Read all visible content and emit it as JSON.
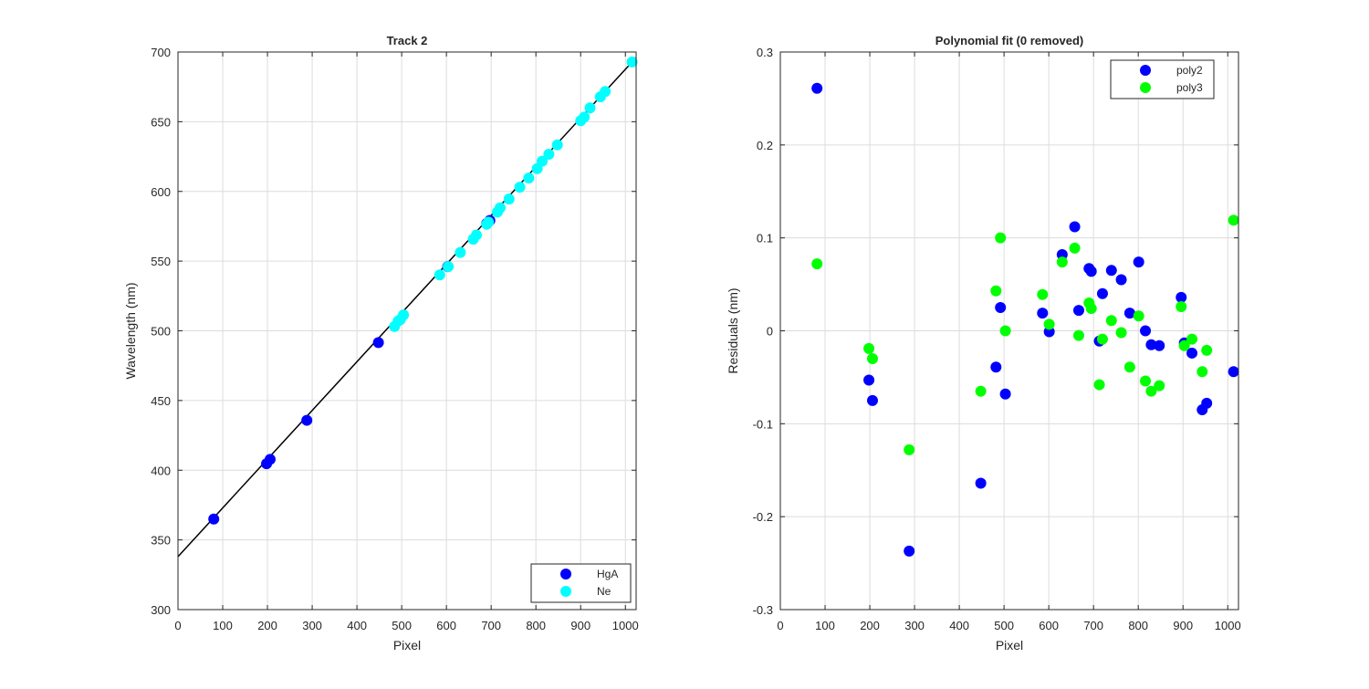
{
  "chart_data": [
    {
      "type": "scatter",
      "title": "Track 2",
      "xlabel": "Pixel",
      "ylabel": "Wavelength (nm)",
      "xlim": [
        0,
        1024
      ],
      "ylim": [
        300,
        700
      ],
      "xticks": [
        0,
        100,
        200,
        300,
        400,
        500,
        600,
        700,
        800,
        900,
        1000
      ],
      "yticks": [
        300,
        350,
        400,
        450,
        500,
        550,
        600,
        650,
        700
      ],
      "grid": true,
      "legend": "bottom-right",
      "fit_line": {
        "x": [
          0,
          1024
        ],
        "y": [
          338.0,
          696.0
        ],
        "color": "#000000"
      },
      "series": [
        {
          "name": "HgA",
          "color": "#0000ff",
          "x": [
            80,
            198,
            206,
            288,
            448,
            603,
            690,
            697
          ],
          "y": [
            365.0,
            404.7,
            407.8,
            435.8,
            491.6,
            546.1,
            577.0,
            579.1
          ]
        },
        {
          "name": "Ne",
          "color": "#00ffff",
          "x": [
            484,
            492,
            497,
            504,
            585,
            604,
            631,
            660,
            667,
            690,
            694,
            714,
            720,
            740,
            764,
            784,
            803,
            814,
            829,
            848,
            900,
            908,
            921,
            944,
            955,
            1015
          ],
          "y": [
            503.1,
            507.0,
            508.0,
            511.4,
            540.1,
            546.1,
            556.2,
            565.7,
            568.7,
            576.4,
            578.0,
            585.2,
            588.2,
            594.5,
            603.0,
            609.6,
            616.4,
            621.7,
            626.7,
            633.4,
            650.7,
            653.3,
            659.9,
            667.8,
            671.7,
            692.9
          ]
        }
      ]
    },
    {
      "type": "scatter",
      "title": "Polynomial fit  (0 removed)",
      "xlabel": "Pixel",
      "ylabel": "Residuals (nm)",
      "xlim": [
        0,
        1024
      ],
      "ylim": [
        -0.3,
        0.3
      ],
      "xticks": [
        0,
        100,
        200,
        300,
        400,
        500,
        600,
        700,
        800,
        900,
        1000
      ],
      "yticks": [
        -0.3,
        -0.2,
        -0.1,
        0,
        0.1,
        0.2,
        0.3
      ],
      "ytick_labels": [
        "-0.3",
        "-0.2",
        "-0.1",
        "0",
        "0.1",
        "0.2",
        "0.3"
      ],
      "grid": true,
      "legend": "top-right",
      "series": [
        {
          "name": "poly2",
          "color": "#0000ff",
          "x": [
            82,
            198,
            206,
            288,
            448,
            482,
            492,
            503,
            586,
            601,
            630,
            658,
            667,
            690,
            695,
            713,
            720,
            740,
            762,
            781,
            801,
            816,
            829,
            847,
            896,
            903,
            920,
            943,
            953,
            1013
          ],
          "y": [
            0.261,
            -0.053,
            -0.075,
            -0.237,
            -0.164,
            -0.039,
            0.025,
            -0.068,
            0.019,
            -0.001,
            0.082,
            0.112,
            0.022,
            0.067,
            0.064,
            -0.011,
            0.04,
            0.065,
            0.055,
            0.019,
            0.074,
            0.0,
            -0.015,
            -0.016,
            0.036,
            -0.013,
            -0.024,
            -0.085,
            -0.078,
            -0.044
          ]
        },
        {
          "name": "poly3",
          "color": "#00ff00",
          "x": [
            82,
            198,
            206,
            288,
            448,
            482,
            492,
            503,
            586,
            601,
            630,
            658,
            667,
            690,
            695,
            713,
            720,
            740,
            762,
            781,
            801,
            816,
            829,
            847,
            896,
            903,
            920,
            943,
            953,
            1013
          ],
          "y": [
            0.072,
            -0.019,
            -0.03,
            -0.128,
            -0.065,
            0.043,
            0.1,
            0.0,
            0.039,
            0.007,
            0.074,
            0.089,
            -0.005,
            0.03,
            0.024,
            -0.058,
            -0.009,
            0.011,
            -0.002,
            -0.039,
            0.016,
            -0.054,
            -0.065,
            -0.059,
            0.026,
            -0.016,
            -0.009,
            -0.044,
            -0.021,
            0.119
          ]
        }
      ]
    }
  ]
}
